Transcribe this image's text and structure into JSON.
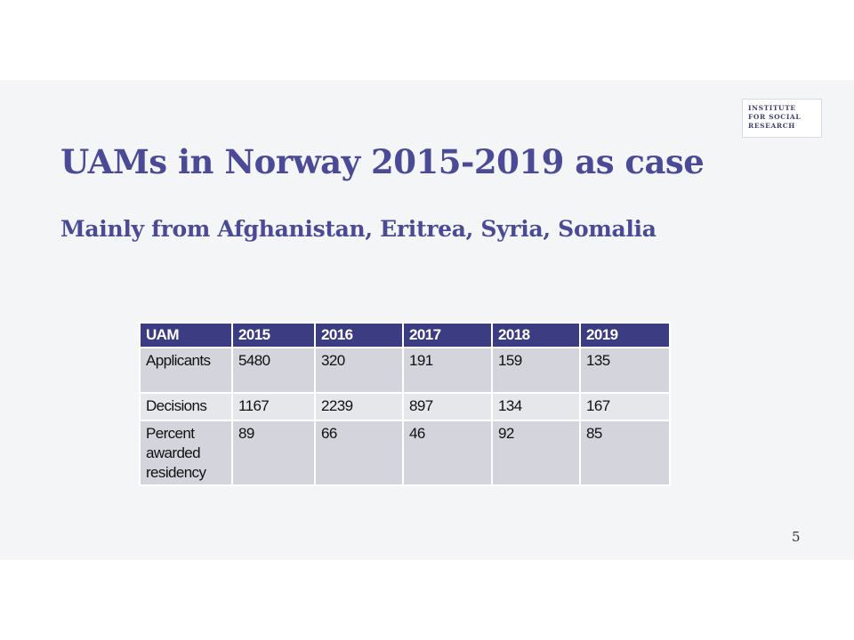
{
  "logo": {
    "lines": [
      "INSTITUTE",
      "FOR SOCIAL",
      "RESEARCH"
    ]
  },
  "title": "UAMs in Norway 2015-2019 as case",
  "subtitle": "Mainly from Afghanistan,  Eritrea, Syria, Somalia",
  "table": {
    "headers": [
      "UAM",
      "2015",
      "2016",
      "2017",
      "2018",
      "2019"
    ],
    "rows": [
      {
        "label": "Applicants",
        "values": [
          "5480",
          "320",
          "191",
          "159",
          "135"
        ]
      },
      {
        "label": "Decisions",
        "values": [
          "1167",
          "2239",
          "897",
          "134",
          "167"
        ]
      },
      {
        "label": "Percent awarded residency",
        "values": [
          "89",
          "66",
          "46",
          "92",
          "85"
        ]
      }
    ]
  },
  "page_number": "5",
  "colors": {
    "title": "#4b4a97",
    "header_bg": "#3c3c82",
    "row_bg": "#d3d4dc"
  }
}
